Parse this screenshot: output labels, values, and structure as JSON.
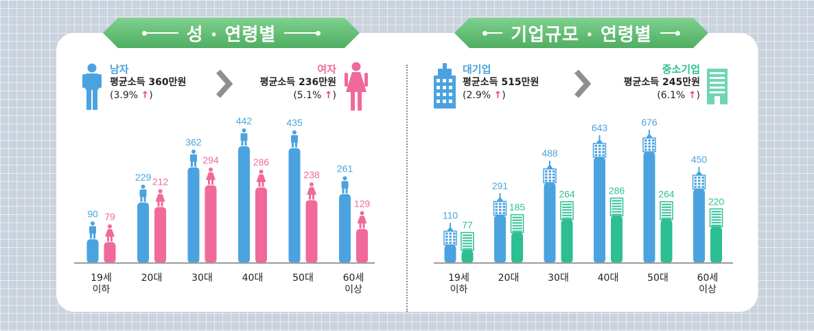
{
  "colors": {
    "male": "#4aa3df",
    "female": "#f0699a",
    "large": "#4aa3df",
    "small": "#2dbf94",
    "banner": "#5ab86b"
  },
  "left_panel": {
    "title": "성 · 연령별",
    "legend_left": {
      "name": "남자",
      "avg": "평균소득 360만원",
      "change": "(3.9% ",
      "arrow": "↑",
      ")": ")",
      "icon": "male-icon"
    },
    "legend_right": {
      "name": "여자",
      "avg": "평균소득 236만원",
      "change": "(5.1% ",
      "arrow": "↑",
      "close": ")",
      "icon": "female-icon"
    }
  },
  "right_panel": {
    "title": "기업규모 · 연령별",
    "legend_left": {
      "name": "대기업",
      "avg": "평균소득 515만원",
      "change": "(2.9% ",
      "arrow": "↑",
      "close": ")",
      "icon": "building-icon"
    },
    "legend_right": {
      "name": "중소기업",
      "avg": "평균소득 245만원",
      "change": "(6.1% ",
      "arrow": "↑",
      "close": ")",
      "icon": "small-building-icon"
    }
  },
  "close_paren": ")",
  "chart_data": [
    {
      "type": "bar",
      "title": "성 · 연령별",
      "categories": [
        "19세\n이하",
        "20대",
        "30대",
        "40대",
        "50대",
        "60세\n이상"
      ],
      "series": [
        {
          "name": "남자",
          "values": [
            90,
            229,
            362,
            442,
            435,
            261
          ]
        },
        {
          "name": "여자",
          "values": [
            79,
            212,
            294,
            286,
            238,
            129
          ]
        }
      ],
      "ylim": [
        0,
        442
      ]
    },
    {
      "type": "bar",
      "title": "기업규모 · 연령별",
      "categories": [
        "19세\n이하",
        "20대",
        "30대",
        "40대",
        "50대",
        "60세\n이상"
      ],
      "series": [
        {
          "name": "대기업",
          "values": [
            110,
            291,
            488,
            643,
            676,
            450
          ]
        },
        {
          "name": "중소기업",
          "values": [
            77,
            185,
            264,
            286,
            264,
            220
          ]
        }
      ],
      "ylim": [
        0,
        676
      ]
    }
  ]
}
